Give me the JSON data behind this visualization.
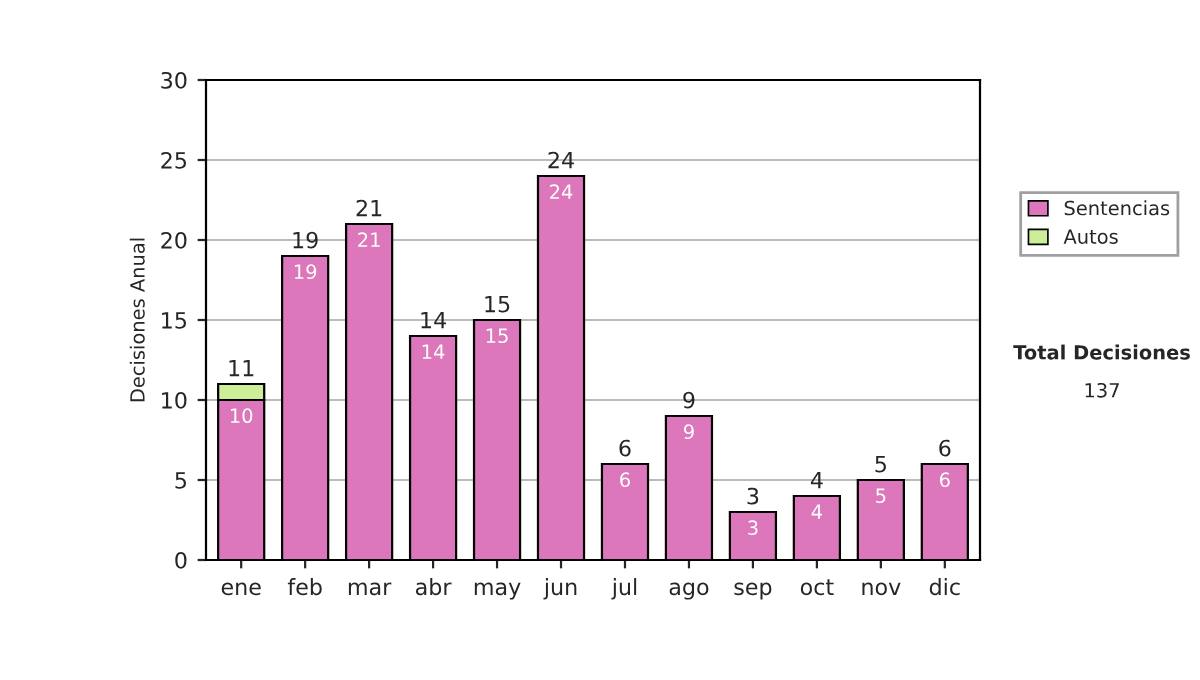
{
  "chart_data": {
    "type": "bar",
    "ylabel": "Decisiones Anual",
    "categories": [
      "ene",
      "feb",
      "mar",
      "abr",
      "may",
      "jun",
      "jul",
      "ago",
      "sep",
      "oct",
      "nov",
      "dic"
    ],
    "stacked": true,
    "series": [
      {
        "name": "Sentencias",
        "color": "#dd77bb",
        "values": [
          10,
          19,
          21,
          14,
          15,
          24,
          6,
          9,
          3,
          4,
          5,
          6
        ],
        "value_labels": [
          "10",
          "19",
          "21",
          "14",
          "15",
          "24",
          "6",
          "9",
          "3",
          "4",
          "5",
          "6"
        ]
      },
      {
        "name": "Autos",
        "color": "#ccee99",
        "values": [
          1,
          null,
          null,
          null,
          null,
          null,
          null,
          null,
          null,
          null,
          null,
          null
        ]
      }
    ],
    "totals": [
      "11",
      "19",
      "21",
      "14",
      "15",
      "24",
      "6",
      "9",
      "3",
      "4",
      "5",
      "6"
    ],
    "ylim": [
      0,
      30
    ],
    "yticks": [
      0,
      5,
      10,
      15,
      20,
      25,
      30
    ],
    "grid": "y",
    "legend": "right",
    "annotations": [
      "Total Decisiones",
      "137"
    ]
  }
}
